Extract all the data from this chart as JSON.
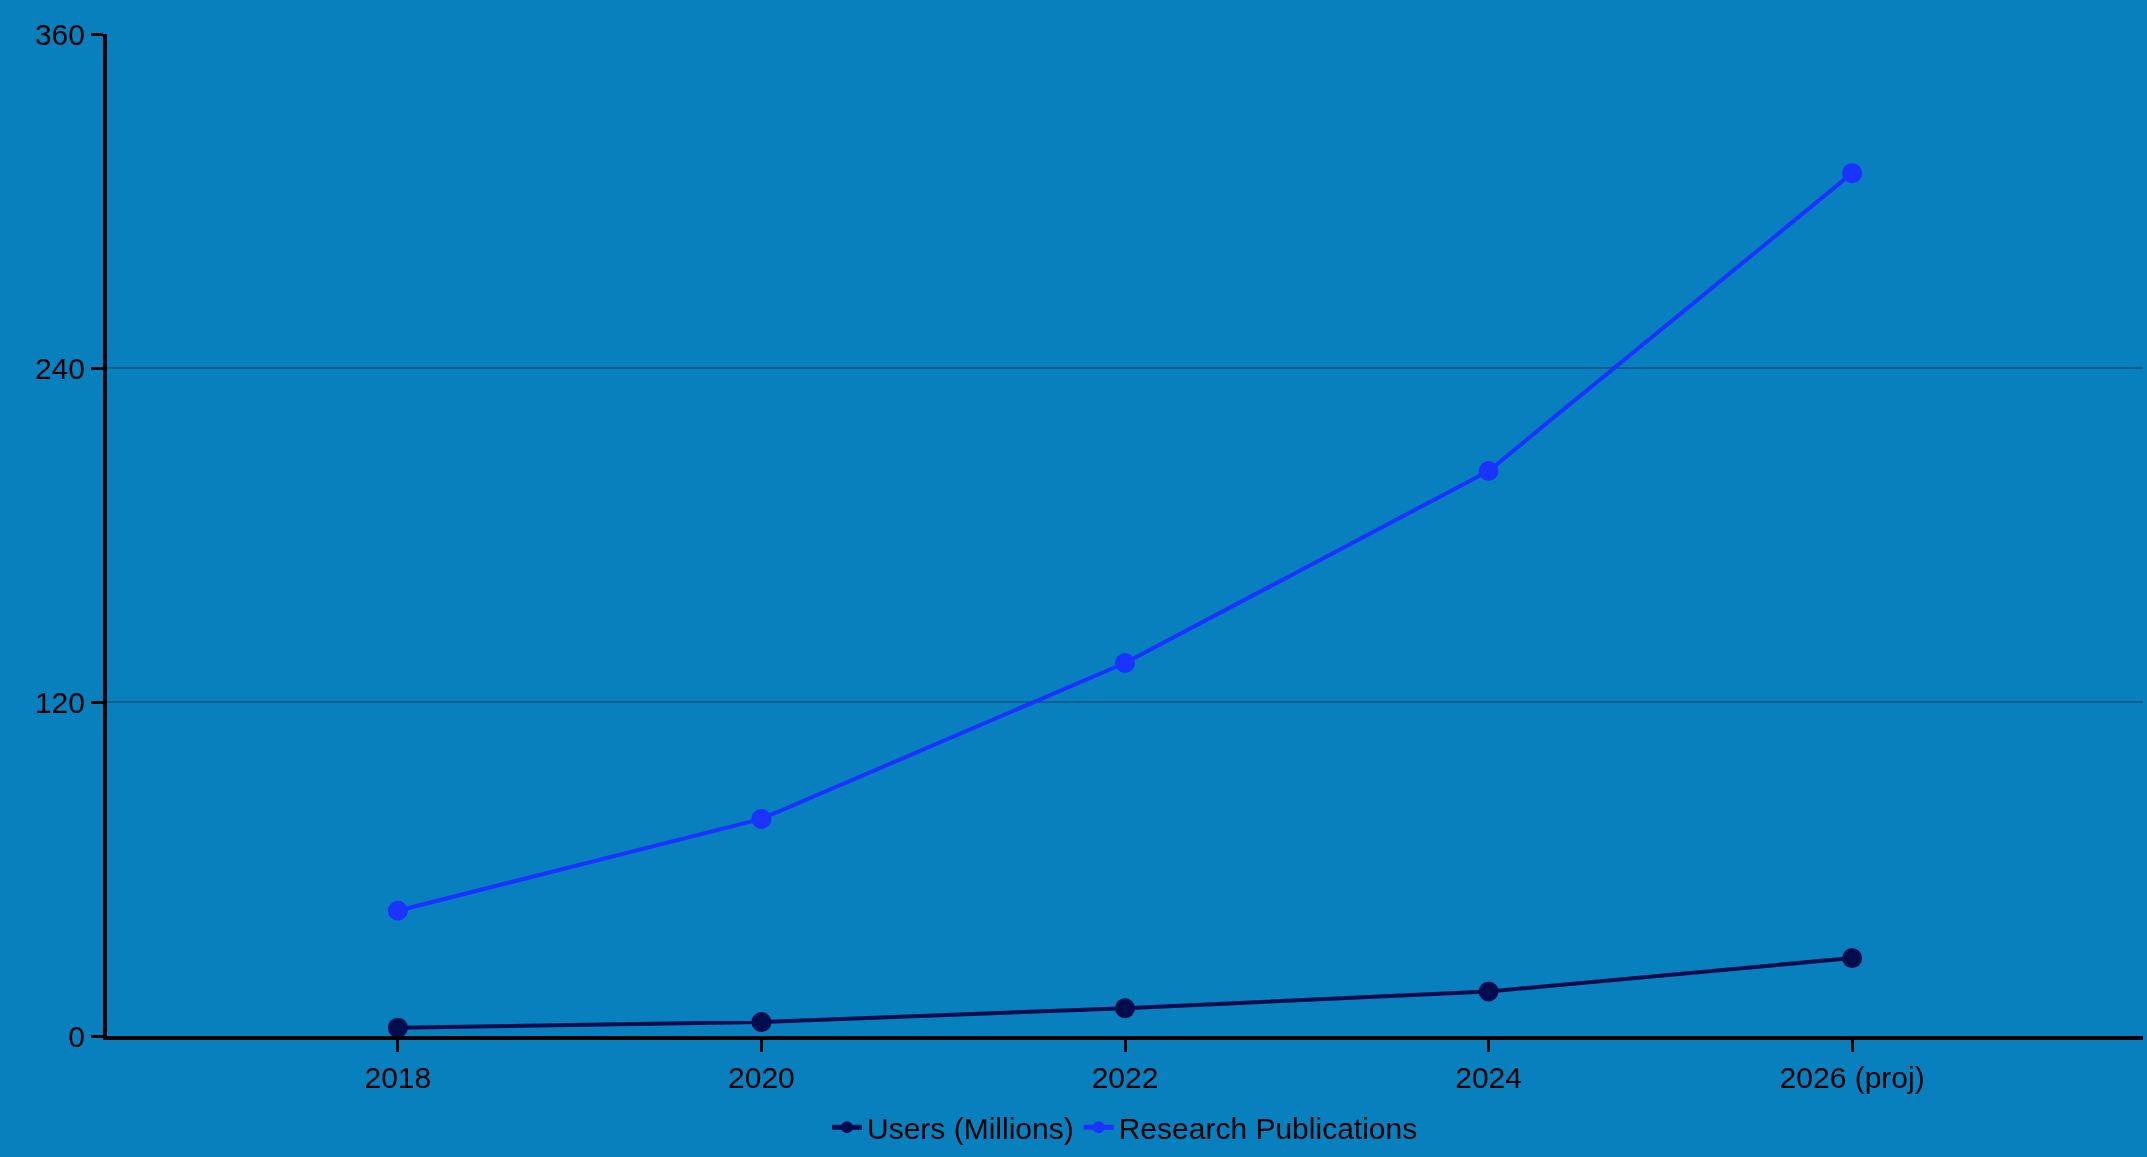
{
  "chart_data": {
    "type": "line",
    "categories": [
      "2018",
      "2020",
      "2022",
      "2024",
      "2026 (proj)"
    ],
    "series": [
      {
        "name": "Users (Millions)",
        "color": "#000c4d",
        "values": [
          3,
          5,
          10,
          16,
          28
        ]
      },
      {
        "name": "Research Publications",
        "color": "#1a33ff",
        "values": [
          45,
          78,
          134,
          203,
          310
        ]
      }
    ],
    "ylim": [
      0,
      360
    ],
    "yticks": [
      0,
      120,
      240,
      360
    ],
    "grid": "y",
    "legend": "bottom",
    "marker": "circle",
    "line_style": "solid"
  }
}
